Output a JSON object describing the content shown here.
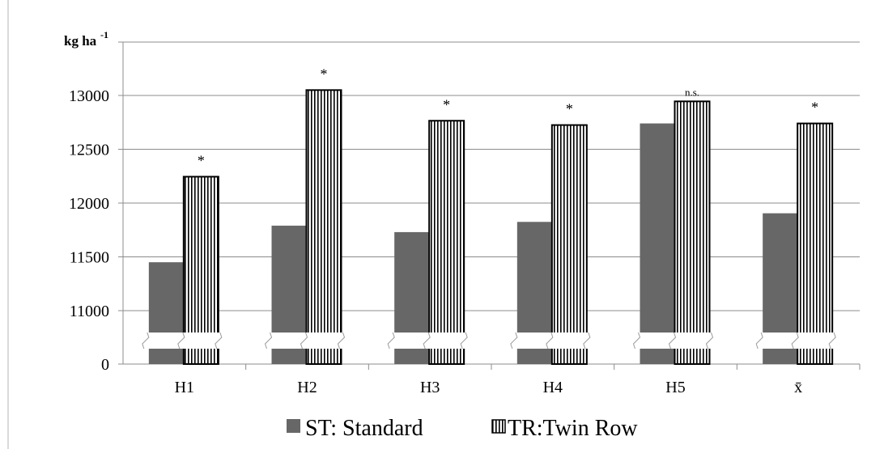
{
  "chart_data": {
    "type": "bar",
    "ylabel_main": "kg ha",
    "ylabel_sup": "-1",
    "categories": [
      "H1",
      "H2",
      "H3",
      "H4",
      "H5",
      "x̄"
    ],
    "series": [
      {
        "name": "ST: Standard",
        "values": [
          11450,
          11790,
          11730,
          11825,
          12740,
          11905
        ],
        "color": "#676767"
      },
      {
        "name": "TR:Twin Row",
        "values": [
          12245,
          13050,
          12765,
          12725,
          12945,
          12740
        ],
        "color": "#ffffff",
        "pattern": "vertical-stripes"
      }
    ],
    "significance": [
      "*",
      "*",
      "*",
      "*",
      "n.s.",
      "*"
    ],
    "yticks": [
      0,
      11000,
      11500,
      12000,
      12500,
      13000
    ],
    "ylim": [
      10750,
      13500
    ],
    "axis_break": true,
    "grid": true,
    "legend_position": "bottom"
  }
}
